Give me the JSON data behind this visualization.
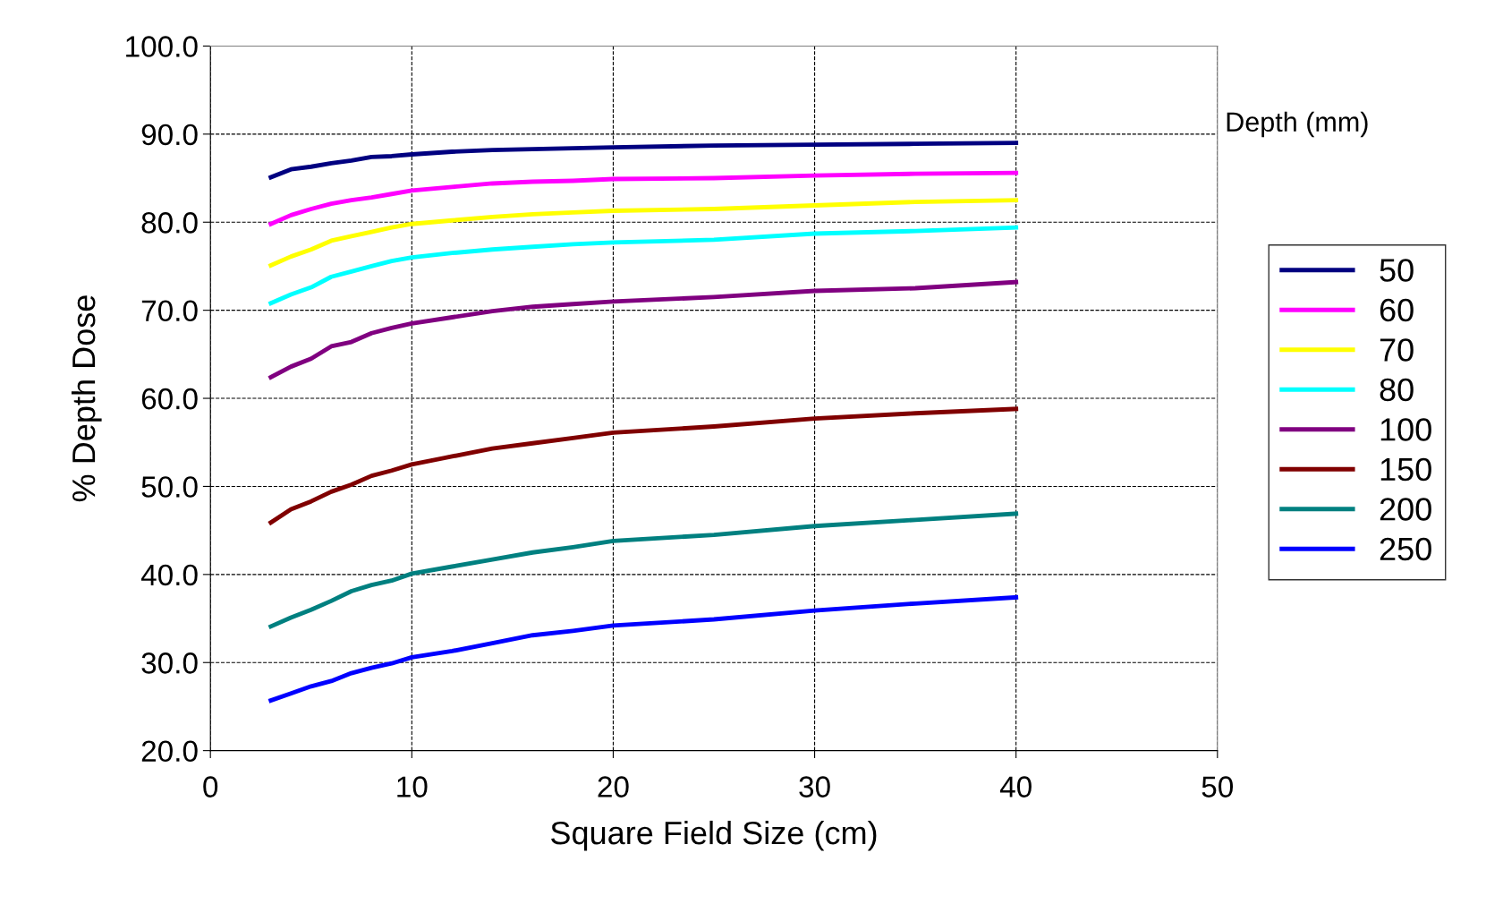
{
  "chart_data": {
    "type": "line",
    "xlabel": "Square Field Size (cm)",
    "ylabel": "% Depth Dose",
    "legend_title": "Depth (mm)",
    "legend": "right",
    "grid": true,
    "line_style": "solid",
    "marker": "none",
    "x": [
      3,
      4,
      5,
      6,
      7,
      8,
      9,
      10,
      12,
      14,
      16,
      18,
      20,
      25,
      30,
      35,
      40
    ],
    "xlim": [
      0,
      50
    ],
    "xticks": [
      0,
      10,
      20,
      30,
      40,
      50
    ],
    "ylim": [
      20,
      100
    ],
    "yticks": [
      {
        "value": 20,
        "label": "20.0"
      },
      {
        "value": 30,
        "label": "30.0"
      },
      {
        "value": 40,
        "label": "40.0"
      },
      {
        "value": 50,
        "label": "50.0"
      },
      {
        "value": 60,
        "label": "60.0"
      },
      {
        "value": 70,
        "label": "70.0"
      },
      {
        "value": 80,
        "label": "80.0"
      },
      {
        "value": 90,
        "label": "90.0"
      },
      {
        "value": 100,
        "label": "100.0"
      }
    ],
    "series": [
      {
        "name": "50",
        "color": "#000080",
        "values": [
          85.1,
          86.0,
          86.3,
          86.7,
          87.0,
          87.4,
          87.5,
          87.7,
          88.0,
          88.2,
          88.3,
          88.4,
          88.5,
          88.7,
          88.8,
          88.9,
          89.0
        ]
      },
      {
        "name": "60",
        "color": "#ff00ff",
        "values": [
          79.8,
          80.8,
          81.5,
          82.1,
          82.5,
          82.8,
          83.2,
          83.6,
          84.0,
          84.4,
          84.6,
          84.7,
          84.9,
          85.0,
          85.3,
          85.5,
          85.6
        ]
      },
      {
        "name": "70",
        "color": "#ffff00",
        "values": [
          75.1,
          76.1,
          76.9,
          77.9,
          78.4,
          78.9,
          79.4,
          79.8,
          80.2,
          80.6,
          80.9,
          81.1,
          81.3,
          81.5,
          81.9,
          82.3,
          82.5
        ]
      },
      {
        "name": "80",
        "color": "#00ffff",
        "values": [
          70.8,
          71.8,
          72.6,
          73.8,
          74.4,
          75.0,
          75.6,
          76.0,
          76.5,
          76.9,
          77.2,
          77.5,
          77.7,
          78.0,
          78.7,
          79.0,
          79.4
        ]
      },
      {
        "name": "100",
        "color": "#800080",
        "values": [
          62.4,
          63.6,
          64.5,
          65.9,
          66.4,
          67.4,
          68.0,
          68.5,
          69.2,
          69.9,
          70.4,
          70.7,
          71.0,
          71.5,
          72.2,
          72.5,
          73.2
        ]
      },
      {
        "name": "150",
        "color": "#800000",
        "values": [
          45.9,
          47.4,
          48.3,
          49.4,
          50.2,
          51.2,
          51.8,
          52.5,
          53.4,
          54.3,
          54.9,
          55.5,
          56.1,
          56.8,
          57.7,
          58.3,
          58.8
        ]
      },
      {
        "name": "200",
        "color": "#008080",
        "values": [
          34.1,
          35.1,
          36.0,
          37.0,
          38.1,
          38.8,
          39.3,
          40.1,
          40.9,
          41.7,
          42.5,
          43.1,
          43.8,
          44.5,
          45.5,
          46.2,
          46.9
        ]
      },
      {
        "name": "250",
        "color": "#0000ff",
        "values": [
          25.7,
          26.5,
          27.3,
          27.9,
          28.8,
          29.4,
          29.9,
          30.6,
          31.3,
          32.2,
          33.1,
          33.6,
          34.2,
          34.9,
          35.9,
          36.7,
          37.4
        ]
      }
    ]
  }
}
